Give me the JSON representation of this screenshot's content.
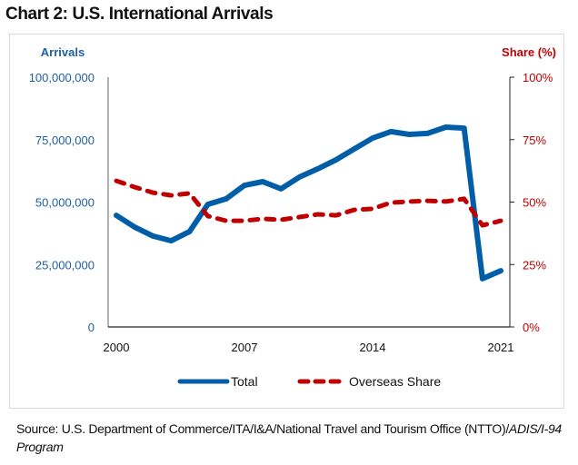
{
  "title": "Chart 2: U.S. International Arrivals",
  "source": {
    "prefix": "Source: U.S. Department of Commerce/ITA/I&A/National Travel and Tourism Office (NTTO)/",
    "italic": "ADIS/I-94 Program"
  },
  "colors": {
    "total": "#005ea8",
    "share": "#c00000",
    "left_axis_text": "#1f5fa8",
    "right_axis_text": "#c00000"
  },
  "chart_data": {
    "type": "line",
    "title": "Chart 2: U.S. International Arrivals",
    "xlabel": "",
    "ylabel": "Arrivals",
    "y2label": "Share (%)",
    "x": [
      2000,
      2001,
      2002,
      2003,
      2004,
      2005,
      2006,
      2007,
      2008,
      2009,
      2010,
      2011,
      2012,
      2013,
      2014,
      2015,
      2016,
      2017,
      2018,
      2019,
      2020,
      2021
    ],
    "x_ticks": [
      "2000",
      "2007",
      "2014",
      "2021"
    ],
    "ylim": [
      0,
      100000000
    ],
    "y_ticks": [
      "0",
      "25,000,000",
      "50,000,000",
      "75,000,000",
      "100,000,000"
    ],
    "y2lim": [
      0,
      100
    ],
    "y2_ticks": [
      "0%",
      "25%",
      "50%",
      "75%",
      "100%"
    ],
    "grid": false,
    "legend_position": "bottom",
    "series": [
      {
        "name": "Total",
        "axis": "left",
        "style": "solid",
        "values": [
          44700000,
          40000000,
          36400000,
          34500000,
          38200000,
          49100000,
          51300000,
          56700000,
          58200000,
          55300000,
          60000000,
          63300000,
          66900000,
          71300000,
          75600000,
          78200000,
          77100000,
          77500000,
          80000000,
          79600000,
          19300000,
          22500000
        ]
      },
      {
        "name": "Overseas Share",
        "axis": "right",
        "style": "dashed",
        "values": [
          58.5,
          56,
          53.8,
          52.7,
          53.5,
          44.4,
          42.5,
          42.5,
          43.3,
          42.9,
          44,
          45.1,
          44.7,
          46.9,
          47.3,
          49.8,
          50.2,
          50.5,
          50.2,
          51.3,
          40.7,
          42.5
        ]
      }
    ]
  }
}
